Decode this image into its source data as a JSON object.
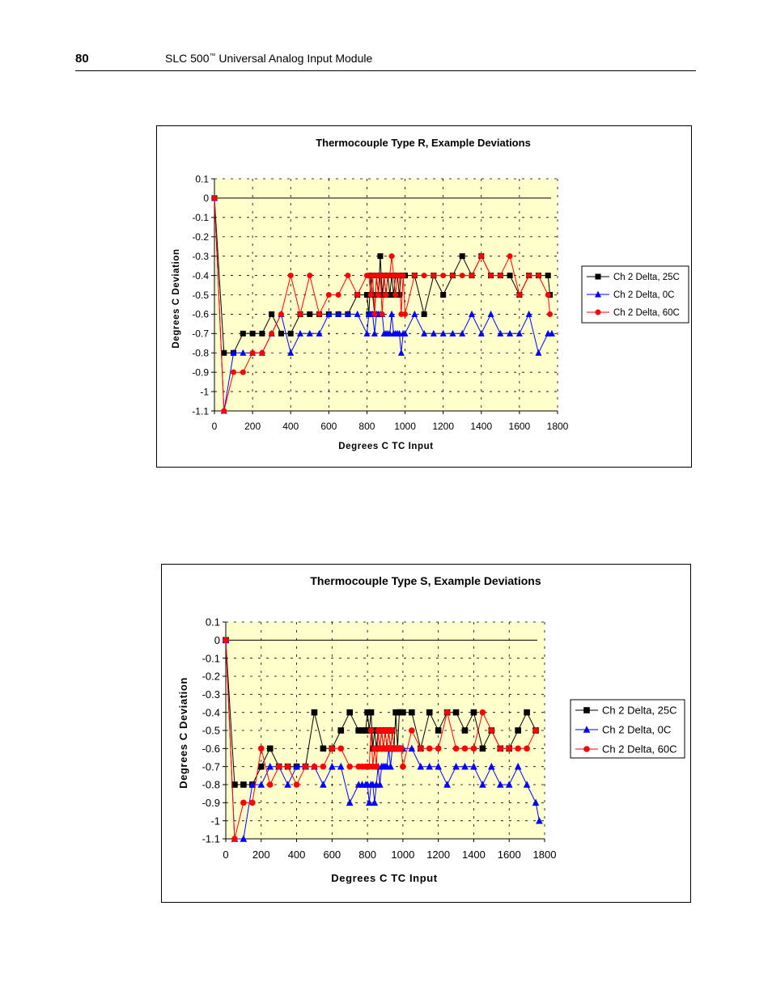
{
  "header": {
    "page_number": "80",
    "title": "SLC 500",
    "trademark": "™",
    "title_rest": " Universal Analog Input Module"
  },
  "chart_data": [
    {
      "type": "line",
      "title": "Thermocouple Type R, Example Deviations",
      "xlabel": "Degrees C TC Input",
      "ylabel": "Degrees C Deviation",
      "xlim": [
        0,
        1800
      ],
      "ylim": [
        -1.1,
        0.1
      ],
      "x_ticks": [
        "0",
        "200",
        "400",
        "600",
        "800",
        "1000",
        "1200",
        "1400",
        "1600",
        "1800"
      ],
      "y_ticks": [
        "0.1",
        "0",
        "-0.1",
        "-0.2",
        "-0.3",
        "-0.4",
        "-0.5",
        "-0.6",
        "-0.7",
        "-0.8",
        "-0.9",
        "-1",
        "-1.1"
      ],
      "grid": true,
      "legend_position": "right",
      "plot_background": "#ffffcc",
      "series": [
        {
          "name": "Ch 2 Delta, 25C",
          "color": "#000000",
          "marker": "square",
          "x": [
            0,
            50,
            100,
            150,
            200,
            250,
            300,
            350,
            400,
            450,
            500,
            550,
            600,
            650,
            700,
            750,
            800,
            810,
            820,
            830,
            840,
            850,
            860,
            870,
            880,
            890,
            900,
            910,
            920,
            930,
            940,
            950,
            960,
            970,
            980,
            990,
            1000,
            1050,
            1100,
            1150,
            1200,
            1250,
            1300,
            1350,
            1400,
            1450,
            1500,
            1550,
            1600,
            1650,
            1700,
            1750,
            1760
          ],
          "y": [
            0,
            -0.8,
            -0.8,
            -0.7,
            -0.7,
            -0.7,
            -0.6,
            -0.7,
            -0.7,
            -0.6,
            -0.6,
            -0.6,
            -0.6,
            -0.6,
            -0.6,
            -0.5,
            -0.5,
            -0.6,
            -0.4,
            -0.5,
            -0.6,
            -0.4,
            -0.5,
            -0.3,
            -0.5,
            -0.4,
            -0.5,
            -0.4,
            -0.5,
            -0.4,
            -0.5,
            -0.4,
            -0.4,
            -0.5,
            -0.4,
            -0.4,
            -0.4,
            -0.4,
            -0.6,
            -0.4,
            -0.5,
            -0.4,
            -0.3,
            -0.4,
            -0.3,
            -0.4,
            -0.4,
            -0.4,
            -0.5,
            -0.4,
            -0.4,
            -0.4,
            -0.5
          ]
        },
        {
          "name": "Ch 2 Delta, 0C",
          "color": "#0000ff",
          "marker": "triangle",
          "x": [
            0,
            50,
            100,
            150,
            200,
            250,
            300,
            350,
            400,
            450,
            500,
            550,
            600,
            650,
            700,
            750,
            800,
            810,
            820,
            830,
            840,
            850,
            860,
            870,
            880,
            890,
            900,
            910,
            920,
            930,
            940,
            950,
            960,
            970,
            980,
            990,
            1000,
            1050,
            1100,
            1150,
            1200,
            1250,
            1300,
            1350,
            1400,
            1450,
            1500,
            1550,
            1600,
            1650,
            1700,
            1750,
            1770
          ],
          "y": [
            0,
            -1.1,
            -0.8,
            -0.8,
            -0.8,
            -0.8,
            -0.7,
            -0.6,
            -0.8,
            -0.7,
            -0.7,
            -0.7,
            -0.6,
            -0.6,
            -0.6,
            -0.6,
            -0.7,
            -0.6,
            -0.6,
            -0.6,
            -0.7,
            -0.6,
            -0.6,
            -0.6,
            -0.6,
            -0.7,
            -0.7,
            -0.7,
            -0.7,
            -0.6,
            -0.7,
            -0.7,
            -0.7,
            -0.7,
            -0.8,
            -0.7,
            -0.7,
            -0.6,
            -0.7,
            -0.7,
            -0.7,
            -0.7,
            -0.7,
            -0.6,
            -0.7,
            -0.6,
            -0.7,
            -0.7,
            -0.7,
            -0.6,
            -0.8,
            -0.7,
            -0.7
          ]
        },
        {
          "name": "Ch 2 Delta, 60C",
          "color": "#ff0000",
          "marker": "circle",
          "x": [
            0,
            50,
            100,
            150,
            200,
            250,
            300,
            350,
            400,
            450,
            500,
            550,
            600,
            650,
            700,
            750,
            800,
            810,
            820,
            830,
            840,
            850,
            860,
            870,
            880,
            890,
            900,
            910,
            920,
            930,
            940,
            950,
            960,
            970,
            980,
            990,
            1000,
            1050,
            1100,
            1150,
            1200,
            1250,
            1300,
            1350,
            1400,
            1450,
            1500,
            1550,
            1600,
            1650,
            1700,
            1750,
            1760
          ],
          "y": [
            0,
            -1.1,
            -0.9,
            -0.9,
            -0.8,
            -0.8,
            -0.7,
            -0.6,
            -0.4,
            -0.6,
            -0.4,
            -0.6,
            -0.5,
            -0.5,
            -0.4,
            -0.5,
            -0.4,
            -0.4,
            -0.5,
            -0.4,
            -0.6,
            -0.4,
            -0.5,
            -0.4,
            -0.6,
            -0.4,
            -0.5,
            -0.4,
            -0.4,
            -0.3,
            -0.4,
            -0.5,
            -0.4,
            -0.4,
            -0.6,
            -0.4,
            -0.6,
            -0.4,
            -0.4,
            -0.4,
            -0.4,
            -0.4,
            -0.4,
            -0.4,
            -0.3,
            -0.4,
            -0.4,
            -0.3,
            -0.5,
            -0.4,
            -0.4,
            -0.5,
            -0.6
          ]
        }
      ]
    },
    {
      "type": "line",
      "title": "Thermocouple Type S, Example Deviations",
      "xlabel": "Degrees C TC Input",
      "ylabel": "Degrees C Deviation",
      "xlim": [
        0,
        1800
      ],
      "ylim": [
        -1.1,
        0.1
      ],
      "x_ticks": [
        "0",
        "200",
        "400",
        "600",
        "800",
        "1000",
        "1200",
        "1400",
        "1600",
        "1800"
      ],
      "y_ticks": [
        "0.1",
        "0",
        "-0.1",
        "-0.2",
        "-0.3",
        "-0.4",
        "-0.5",
        "-0.6",
        "-0.7",
        "-0.8",
        "-0.9",
        "-1",
        "-1.1"
      ],
      "grid": true,
      "legend_position": "right",
      "plot_background": "#ffffcc",
      "series": [
        {
          "name": "Ch 2 Delta, 25C",
          "color": "#000000",
          "marker": "square",
          "x": [
            0,
            50,
            100,
            150,
            200,
            250,
            300,
            350,
            400,
            450,
            500,
            550,
            600,
            650,
            700,
            750,
            770,
            790,
            800,
            810,
            820,
            830,
            840,
            850,
            860,
            870,
            880,
            890,
            900,
            910,
            920,
            930,
            940,
            950,
            960,
            970,
            980,
            990,
            1000,
            1050,
            1100,
            1150,
            1200,
            1250,
            1300,
            1350,
            1400,
            1450,
            1500,
            1550,
            1600,
            1650,
            1700,
            1750
          ],
          "y": [
            0,
            -0.8,
            -0.8,
            -0.8,
            -0.7,
            -0.6,
            -0.7,
            -0.7,
            -0.7,
            -0.7,
            -0.4,
            -0.6,
            -0.6,
            -0.5,
            -0.4,
            -0.5,
            -0.5,
            -0.5,
            -0.4,
            -0.5,
            -0.4,
            -0.6,
            -0.5,
            -0.6,
            -0.5,
            -0.6,
            -0.5,
            -0.6,
            -0.5,
            -0.6,
            -0.5,
            -0.6,
            -0.5,
            -0.6,
            -0.4,
            -0.6,
            -0.4,
            -0.4,
            -0.4,
            -0.4,
            -0.6,
            -0.4,
            -0.5,
            -0.4,
            -0.4,
            -0.5,
            -0.4,
            -0.6,
            -0.5,
            -0.6,
            -0.6,
            -0.5,
            -0.4,
            -0.5
          ]
        },
        {
          "name": "Ch 2 Delta, 0C",
          "color": "#0000ff",
          "marker": "triangle",
          "x": [
            0,
            50,
            100,
            150,
            200,
            250,
            300,
            350,
            400,
            450,
            500,
            550,
            600,
            650,
            700,
            750,
            770,
            790,
            800,
            810,
            820,
            830,
            840,
            850,
            860,
            870,
            880,
            890,
            900,
            910,
            920,
            930,
            940,
            950,
            960,
            970,
            980,
            990,
            1000,
            1050,
            1100,
            1150,
            1200,
            1250,
            1300,
            1350,
            1400,
            1450,
            1500,
            1550,
            1600,
            1650,
            1700,
            1750,
            1770
          ],
          "y": [
            0,
            -1.1,
            -1.1,
            -0.8,
            -0.8,
            -0.7,
            -0.7,
            -0.8,
            -0.7,
            -0.7,
            -0.7,
            -0.8,
            -0.7,
            -0.7,
            -0.9,
            -0.8,
            -0.8,
            -0.8,
            -0.8,
            -0.9,
            -0.8,
            -0.8,
            -0.9,
            -0.8,
            -0.7,
            -0.8,
            -0.7,
            -0.7,
            -0.7,
            -0.7,
            -0.6,
            -0.7,
            -0.6,
            -0.6,
            -0.6,
            -0.6,
            -0.6,
            -0.6,
            -0.6,
            -0.6,
            -0.7,
            -0.7,
            -0.7,
            -0.8,
            -0.7,
            -0.7,
            -0.7,
            -0.8,
            -0.7,
            -0.8,
            -0.8,
            -0.7,
            -0.8,
            -0.9,
            -1.0
          ]
        },
        {
          "name": "Ch 2 Delta, 60C",
          "color": "#ff0000",
          "marker": "circle",
          "x": [
            0,
            50,
            100,
            150,
            200,
            250,
            300,
            350,
            400,
            450,
            500,
            550,
            600,
            650,
            700,
            750,
            770,
            790,
            800,
            810,
            820,
            830,
            840,
            850,
            860,
            870,
            880,
            890,
            900,
            910,
            920,
            930,
            940,
            950,
            960,
            970,
            980,
            990,
            1000,
            1050,
            1100,
            1150,
            1200,
            1250,
            1300,
            1350,
            1400,
            1450,
            1500,
            1550,
            1600,
            1650,
            1700,
            1750
          ],
          "y": [
            0,
            -1.1,
            -0.9,
            -0.9,
            -0.6,
            -0.8,
            -0.7,
            -0.7,
            -0.8,
            -0.7,
            -0.7,
            -0.7,
            -0.6,
            -0.6,
            -0.7,
            -0.7,
            -0.7,
            -0.7,
            -0.7,
            -0.7,
            -0.5,
            -0.7,
            -0.6,
            -0.7,
            -0.5,
            -0.6,
            -0.5,
            -0.6,
            -0.5,
            -0.6,
            -0.5,
            -0.6,
            -0.5,
            -0.6,
            -0.6,
            -0.6,
            -0.6,
            -0.6,
            -0.7,
            -0.5,
            -0.6,
            -0.6,
            -0.6,
            -0.4,
            -0.6,
            -0.6,
            -0.6,
            -0.4,
            -0.5,
            -0.6,
            -0.6,
            -0.6,
            -0.6,
            -0.5
          ]
        }
      ]
    }
  ]
}
